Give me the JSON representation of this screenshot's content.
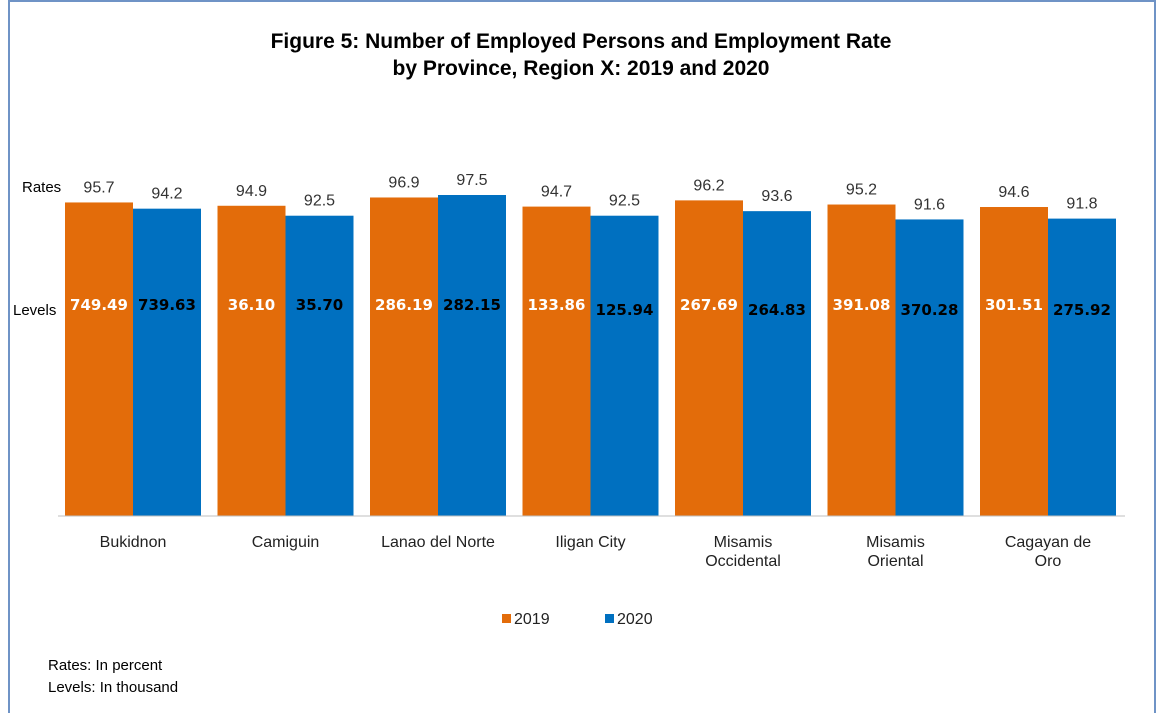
{
  "figure": {
    "title_line1": "Figure 5: Number of Employed Persons and Employment Rate",
    "title_line2": "by Province, Region X: 2019 and 2020"
  },
  "row_labels": {
    "rates": "Rates",
    "levels": "Levels"
  },
  "notes": {
    "rates": "Rates: In percent",
    "levels": "Levels: In thousand"
  },
  "colors": {
    "2019": "#e36c0a",
    "2020": "#0070c0"
  },
  "chart_data": {
    "type": "bar",
    "categories": [
      "Bukidnon",
      "Camiguin",
      "Lanao del Norte",
      "Iligan City",
      "Misamis Occidental",
      "Misamis Oriental",
      "Cagayan de Oro"
    ],
    "category_lines": [
      [
        "Bukidnon"
      ],
      [
        "Camiguin"
      ],
      [
        "Lanao del Norte"
      ],
      [
        "Iligan City"
      ],
      [
        "Misamis",
        "Occidental"
      ],
      [
        "Misamis",
        "Oriental"
      ],
      [
        "Cagayan de",
        "Oro"
      ]
    ],
    "series": [
      {
        "name": "2019",
        "rates": [
          95.7,
          94.9,
          96.9,
          94.7,
          96.2,
          95.2,
          94.6
        ],
        "rate_labels": [
          "95.7",
          "94.9",
          "96.9",
          "94.7",
          "96.2",
          "95.2",
          "94.6"
        ],
        "levels": [
          749.49,
          36.1,
          286.19,
          133.86,
          267.69,
          391.08,
          301.51
        ],
        "level_labels": [
          "749.49",
          "36.10",
          "286.19",
          "133.86",
          "267.69",
          "391.08",
          "301.51"
        ]
      },
      {
        "name": "2020",
        "rates": [
          94.2,
          92.5,
          97.5,
          92.5,
          93.6,
          91.6,
          91.8
        ],
        "rate_labels": [
          "94.2",
          "92.5",
          "97.5",
          "92.5",
          "93.6",
          "91.6",
          "91.8"
        ],
        "levels": [
          739.63,
          35.7,
          282.15,
          125.94,
          264.83,
          370.28,
          275.92
        ],
        "level_labels": [
          "739.63",
          "35.70",
          "282.15",
          "125.94",
          "264.83",
          "370.28",
          "275.92"
        ]
      }
    ],
    "legend": [
      "2019",
      "2020"
    ],
    "legend_position": "bottom",
    "grid": false
  }
}
